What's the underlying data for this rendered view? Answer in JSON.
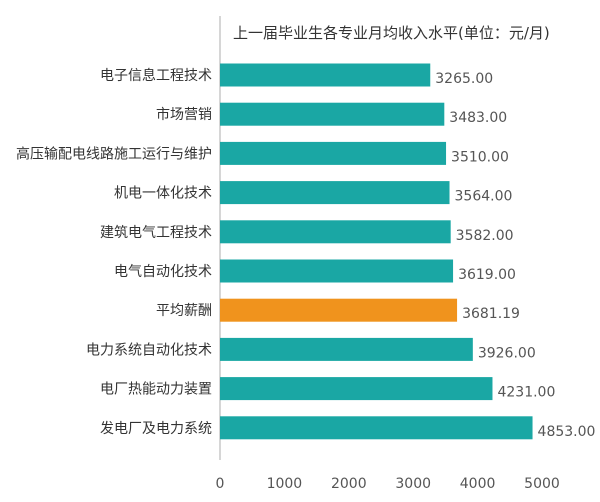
{
  "chart_data": {
    "type": "bar",
    "orientation": "horizontal",
    "title": "上一届毕业生各专业月均收入水平(单位：元/月)",
    "xlabel": "",
    "ylabel": "",
    "xlim": [
      0,
      5000
    ],
    "xticks": [
      "0",
      "1000",
      "2000",
      "3000",
      "4000",
      "5000"
    ],
    "grid": false,
    "legend": "none",
    "colors": {
      "default": "#1aa7a4",
      "highlight": "#f0931d",
      "highlight_text": "#f0931d"
    },
    "highlight_category": "平均薪酬",
    "categories": [
      "电子信息工程技术",
      "市场营销",
      "高压输配电线路施工运行与维护",
      "机电一体化技术",
      "建筑电气工程技术",
      "电气自动化技术",
      "平均薪酬",
      "电力系统自动化技术",
      "电厂热能动力装置",
      "发电厂及电力系统"
    ],
    "values": [
      3265,
      3483,
      3510,
      3564,
      3582,
      3619,
      3681.19,
      3926,
      4231,
      4853
    ],
    "value_labels": [
      "3265.00",
      "3483.00",
      "3510.00",
      "3564.00",
      "3582.00",
      "3619.00",
      "3681.19",
      "3926.00",
      "4231.00",
      "4853.00"
    ]
  }
}
